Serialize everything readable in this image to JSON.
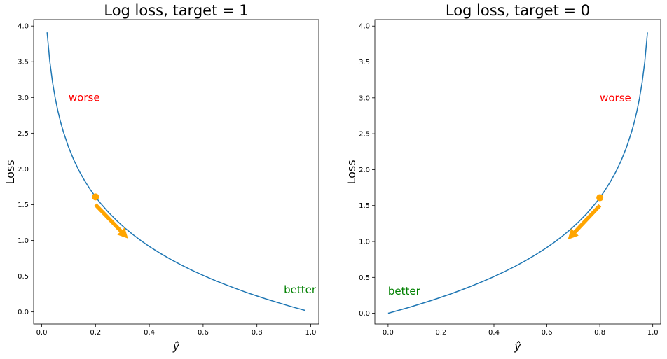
{
  "chart_data": [
    {
      "type": "line",
      "title": "Log loss, target = 1",
      "xlabel": "ŷ",
      "ylabel": "Loss",
      "xlim": [
        -0.03,
        1.03
      ],
      "ylim": [
        -0.17,
        4.09
      ],
      "xticks": [
        "0.0",
        "0.2",
        "0.4",
        "0.6",
        "0.8",
        "1.0"
      ],
      "xtick_values": [
        0.0,
        0.2,
        0.4,
        0.6,
        0.8,
        1.0
      ],
      "yticks": [
        "0.0",
        "0.5",
        "1.0",
        "1.5",
        "2.0",
        "2.5",
        "3.0",
        "3.5",
        "4.0"
      ],
      "ytick_values": [
        0.0,
        0.5,
        1.0,
        1.5,
        2.0,
        2.5,
        3.0,
        3.5,
        4.0
      ],
      "series": [
        {
          "function": "-ln(x)",
          "x": [
            0.02,
            0.03,
            0.04,
            0.05,
            0.06,
            0.07,
            0.08,
            0.1,
            0.12,
            0.14,
            0.16,
            0.18,
            0.2,
            0.22,
            0.25,
            0.28,
            0.31,
            0.34,
            0.37,
            0.4,
            0.44,
            0.48,
            0.52,
            0.56,
            0.6,
            0.64,
            0.68,
            0.72,
            0.76,
            0.8,
            0.84,
            0.88,
            0.92,
            0.95,
            0.98
          ],
          "y": [
            3.912,
            3.507,
            3.219,
            2.996,
            2.813,
            2.659,
            2.526,
            2.303,
            2.12,
            1.966,
            1.833,
            1.715,
            1.609,
            1.514,
            1.386,
            1.273,
            1.171,
            1.079,
            0.994,
            0.916,
            0.821,
            0.734,
            0.654,
            0.58,
            0.511,
            0.446,
            0.386,
            0.329,
            0.274,
            0.223,
            0.174,
            0.128,
            0.083,
            0.051,
            0.02
          ],
          "color": "#1f77b4"
        }
      ],
      "marker": {
        "x": 0.2,
        "y": 1.609,
        "color": "#ffa500"
      },
      "arrow": {
        "from": [
          0.2,
          1.5
        ],
        "to": [
          0.32,
          1.03
        ],
        "color": "#ffa500"
      },
      "annotations": [
        {
          "text": "worse",
          "x": 0.1,
          "y": 3.0,
          "color": "#ff0000"
        },
        {
          "text": "better",
          "x": 0.9,
          "y": 0.31,
          "color": "#008000"
        }
      ]
    },
    {
      "type": "line",
      "title": "Log loss, target = 0",
      "xlabel": "ŷ",
      "ylabel": "Loss",
      "xlim": [
        -0.05,
        1.03
      ],
      "ylim": [
        -0.15,
        4.09
      ],
      "xticks": [
        "0.0",
        "0.2",
        "0.4",
        "0.6",
        "0.8",
        "1.0"
      ],
      "xtick_values": [
        0.0,
        0.2,
        0.4,
        0.6,
        0.8,
        1.0
      ],
      "yticks": [
        "0.0",
        "0.5",
        "1.0",
        "1.5",
        "2.0",
        "2.5",
        "3.0",
        "3.5",
        "4.0"
      ],
      "ytick_values": [
        0.0,
        0.5,
        1.0,
        1.5,
        2.0,
        2.5,
        3.0,
        3.5,
        4.0
      ],
      "series": [
        {
          "function": "-ln(1-x)",
          "x": [
            0.0,
            0.04,
            0.08,
            0.12,
            0.16,
            0.2,
            0.24,
            0.28,
            0.32,
            0.36,
            0.4,
            0.44,
            0.48,
            0.52,
            0.56,
            0.6,
            0.63,
            0.66,
            0.69,
            0.72,
            0.75,
            0.78,
            0.8,
            0.82,
            0.84,
            0.86,
            0.88,
            0.9,
            0.92,
            0.93,
            0.94,
            0.95,
            0.96,
            0.97,
            0.98
          ],
          "y": [
            0.0,
            0.041,
            0.083,
            0.128,
            0.174,
            0.223,
            0.274,
            0.329,
            0.386,
            0.446,
            0.511,
            0.58,
            0.654,
            0.734,
            0.821,
            0.916,
            0.994,
            1.079,
            1.171,
            1.273,
            1.386,
            1.514,
            1.609,
            1.715,
            1.833,
            1.966,
            2.12,
            2.303,
            2.526,
            2.659,
            2.813,
            2.996,
            3.219,
            3.507,
            3.912
          ],
          "color": "#1f77b4"
        }
      ],
      "marker": {
        "x": 0.8,
        "y": 1.609,
        "color": "#ffa500"
      },
      "arrow": {
        "from": [
          0.8,
          1.5
        ],
        "to": [
          0.68,
          1.03
        ],
        "color": "#ffa500"
      },
      "annotations": [
        {
          "text": "worse",
          "x": 0.8,
          "y": 3.0,
          "color": "#ff0000"
        },
        {
          "text": "better",
          "x": 0.0,
          "y": 0.31,
          "color": "#008000"
        }
      ]
    }
  ]
}
